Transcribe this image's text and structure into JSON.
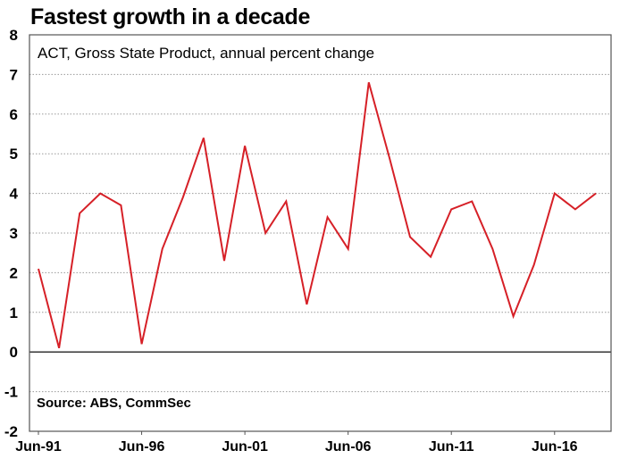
{
  "chart_data": {
    "type": "line",
    "title": "Fastest growth in a decade",
    "subtitle": "ACT, Gross State Product, annual percent change",
    "source": "Source: ABS, CommSec",
    "xlabel": "",
    "ylabel": "",
    "ylim": [
      -2,
      8
    ],
    "yticks": [
      "-2",
      "-1",
      "0",
      "1",
      "2",
      "3",
      "4",
      "5",
      "6",
      "7",
      "8"
    ],
    "xticks": [
      "Jun-91",
      "Jun-96",
      "Jun-01",
      "Jun-06",
      "Jun-11",
      "Jun-16"
    ],
    "x": [
      1991,
      1992,
      1993,
      1994,
      1995,
      1996,
      1997,
      1998,
      1999,
      2000,
      2001,
      2002,
      2003,
      2004,
      2005,
      2006,
      2007,
      2008,
      2009,
      2010,
      2011,
      2012,
      2013,
      2014,
      2015,
      2016,
      2017,
      2018
    ],
    "series": [
      {
        "name": "ACT GSP annual % change",
        "color": "#d62027",
        "values": [
          2.1,
          0.1,
          3.5,
          4.0,
          3.7,
          0.2,
          2.6,
          3.9,
          5.4,
          2.3,
          5.2,
          3.0,
          3.8,
          1.2,
          3.4,
          2.6,
          6.8,
          4.9,
          2.9,
          2.4,
          3.6,
          3.8,
          2.6,
          0.9,
          2.2,
          4.0,
          3.6,
          4.0
        ]
      }
    ],
    "grid": true,
    "legend": "none"
  }
}
